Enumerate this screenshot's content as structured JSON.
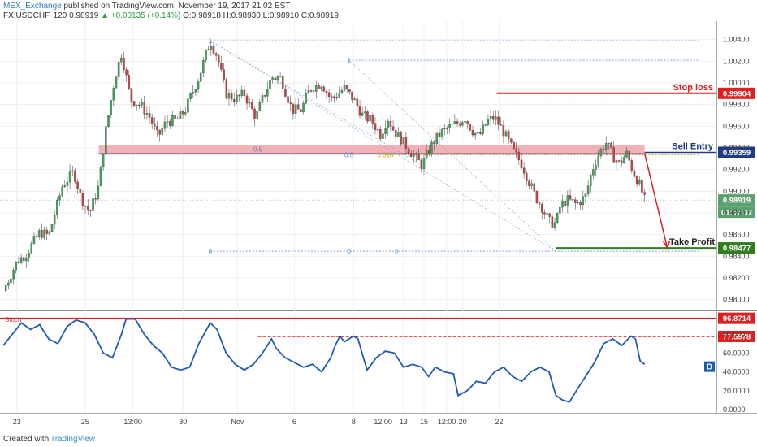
{
  "header": {
    "publisher": "MEX_Exchange",
    "published_text": "published on TradingView.com, November 19, 2017 21:02 EST",
    "symbol": "FX:USDCHF, 120",
    "price": "0.98919",
    "change": "+0.00135 (+0.14%)",
    "ohlc": "O:0.98918 H:0.98930 L:0.98910 C:0.98919"
  },
  "footer": {
    "created_with": "Created with",
    "brand": "TradingView"
  },
  "chart_data": {
    "type": "candlestick",
    "symbol": "FX:USDCHF",
    "timeframe": "120",
    "y_range": [
      0.9796,
      1.0051
    ],
    "y_ticks": [
      "1.00400",
      "1.00200",
      "1.00000",
      "0.99800",
      "0.99600",
      "0.99400",
      "0.99200",
      "0.99000",
      "0.98800",
      "0.98600",
      "0.98400",
      "0.98200",
      "0.98000"
    ],
    "x_ticks": [
      "23",
      "25",
      "13:00",
      "30",
      "Nov",
      "6",
      "8",
      "12:00",
      "13",
      "15",
      "12:00",
      "20",
      "22"
    ],
    "x_tick_pos": [
      0.03,
      0.18,
      0.285,
      0.395,
      0.515,
      0.64,
      0.77,
      0.835,
      0.88,
      0.925,
      0.975,
      1.01,
      1.09
    ],
    "price_path": [
      [
        0.0,
        0.9808
      ],
      [
        0.03,
        0.9835
      ],
      [
        0.05,
        0.9842
      ],
      [
        0.08,
        0.9862
      ],
      [
        0.1,
        0.9859
      ],
      [
        0.13,
        0.9905
      ],
      [
        0.155,
        0.9918
      ],
      [
        0.17,
        0.9895
      ],
      [
        0.19,
        0.988
      ],
      [
        0.21,
        0.9905
      ],
      [
        0.225,
        0.9955
      ],
      [
        0.245,
        1.0004
      ],
      [
        0.26,
        1.0028
      ],
      [
        0.28,
        0.9985
      ],
      [
        0.3,
        0.998
      ],
      [
        0.32,
        0.997
      ],
      [
        0.34,
        0.995
      ],
      [
        0.36,
        0.9965
      ],
      [
        0.38,
        0.9965
      ],
      [
        0.4,
        0.9975
      ],
      [
        0.43,
        1.0005
      ],
      [
        0.455,
        1.0039
      ],
      [
        0.47,
        1.0025
      ],
      [
        0.49,
        0.999
      ],
      [
        0.51,
        0.9985
      ],
      [
        0.53,
        0.999
      ],
      [
        0.555,
        0.9968
      ],
      [
        0.57,
        0.9985
      ],
      [
        0.59,
        1.0005
      ],
      [
        0.61,
        1.0005
      ],
      [
        0.635,
        0.9975
      ],
      [
        0.655,
        0.9975
      ],
      [
        0.675,
        0.9995
      ],
      [
        0.7,
        1.0
      ],
      [
        0.72,
        0.9985
      ],
      [
        0.75,
        0.9995
      ],
      [
        0.77,
        0.9985
      ],
      [
        0.79,
        0.997
      ],
      [
        0.81,
        0.9965
      ],
      [
        0.83,
        0.9952
      ],
      [
        0.845,
        0.9968
      ],
      [
        0.86,
        0.9955
      ],
      [
        0.875,
        0.9948
      ],
      [
        0.9,
        0.9934
      ],
      [
        0.92,
        0.9924
      ],
      [
        0.945,
        0.9945
      ],
      [
        0.965,
        0.9955
      ],
      [
        0.985,
        0.996
      ],
      [
        1.0,
        0.9963
      ],
      [
        1.015,
        0.9968
      ],
      [
        1.03,
        0.9957
      ],
      [
        1.045,
        0.995
      ],
      [
        1.065,
        0.9965
      ],
      [
        1.08,
        0.9968
      ],
      [
        1.1,
        0.9955
      ],
      [
        1.12,
        0.9938
      ],
      [
        1.14,
        0.9925
      ],
      [
        1.155,
        0.991
      ],
      [
        1.17,
        0.9895
      ],
      [
        1.185,
        0.9885
      ],
      [
        1.2,
        0.9872
      ],
      [
        1.215,
        0.987
      ],
      [
        1.225,
        0.9887
      ],
      [
        1.24,
        0.9892
      ],
      [
        1.26,
        0.9888
      ],
      [
        1.28,
        0.9895
      ],
      [
        1.295,
        0.992
      ],
      [
        1.31,
        0.9935
      ],
      [
        1.325,
        0.9945
      ],
      [
        1.34,
        0.9933
      ],
      [
        1.355,
        0.9925
      ],
      [
        1.37,
        0.9935
      ],
      [
        1.385,
        0.9918
      ],
      [
        1.4,
        0.9905
      ],
      [
        1.41,
        0.9892
      ]
    ],
    "resistance_zone": {
      "top": 0.99425,
      "bottom": 0.99345,
      "label": "0.5"
    },
    "fib_labels": [
      {
        "text": "1",
        "price": 1.0039,
        "pos": 0.455
      },
      {
        "text": "1",
        "price": 1.0021,
        "pos": 0.76
      },
      {
        "text": "0.5",
        "price": 0.99335,
        "pos": 0.76
      },
      {
        "text": "0.618",
        "price": 0.99335,
        "pos": 0.84
      },
      {
        "text": "0",
        "price": 0.98447,
        "pos": 0.455
      },
      {
        "text": "0",
        "price": 0.98447,
        "pos": 0.76
      },
      {
        "text": "0",
        "price": 0.98447,
        "pos": 0.865
      }
    ],
    "levels": [
      {
        "name": "Stop loss",
        "price": 0.99904,
        "color": "#e02020"
      },
      {
        "name": "Sell Entry",
        "price": 0.99359,
        "color": "#1f3a86"
      },
      {
        "name": "Take Profit",
        "price": 0.98477,
        "color": "#2e7d1f"
      }
    ],
    "current_price": "0.98919",
    "countdown": "01:57:32",
    "oscillator": {
      "name": "Stoch",
      "y_range": [
        0,
        100
      ],
      "y_ticks": [
        "80.0000",
        "60.0000",
        "40.0000",
        "20.0000",
        "0.0000"
      ],
      "levels": [
        {
          "value": 96.8714,
          "label": "96.8714",
          "color": "#e02020",
          "style": "solid"
        },
        {
          "value": 77.5978,
          "label": "77.5978",
          "color": "#e02020",
          "style": "dashed"
        }
      ],
      "line_color": "#1e5bb8",
      "badge": "D",
      "values": [
        [
          0.0,
          68
        ],
        [
          0.02,
          80
        ],
        [
          0.04,
          92
        ],
        [
          0.06,
          85
        ],
        [
          0.08,
          90
        ],
        [
          0.1,
          75
        ],
        [
          0.12,
          70
        ],
        [
          0.14,
          88
        ],
        [
          0.16,
          95
        ],
        [
          0.18,
          92
        ],
        [
          0.2,
          80
        ],
        [
          0.22,
          60
        ],
        [
          0.24,
          55
        ],
        [
          0.26,
          80
        ],
        [
          0.27,
          96
        ],
        [
          0.29,
          96
        ],
        [
          0.31,
          80
        ],
        [
          0.33,
          68
        ],
        [
          0.35,
          60
        ],
        [
          0.37,
          45
        ],
        [
          0.39,
          42
        ],
        [
          0.41,
          45
        ],
        [
          0.43,
          70
        ],
        [
          0.455,
          92
        ],
        [
          0.47,
          85
        ],
        [
          0.49,
          60
        ],
        [
          0.51,
          48
        ],
        [
          0.53,
          42
        ],
        [
          0.55,
          48
        ],
        [
          0.57,
          60
        ],
        [
          0.59,
          75
        ],
        [
          0.6,
          65
        ],
        [
          0.62,
          55
        ],
        [
          0.64,
          50
        ],
        [
          0.66,
          45
        ],
        [
          0.68,
          48
        ],
        [
          0.7,
          40
        ],
        [
          0.72,
          55
        ],
        [
          0.73,
          68
        ],
        [
          0.74,
          78
        ],
        [
          0.75,
          72
        ],
        [
          0.77,
          78
        ],
        [
          0.78,
          75
        ],
        [
          0.79,
          58
        ],
        [
          0.8,
          42
        ],
        [
          0.82,
          55
        ],
        [
          0.84,
          62
        ],
        [
          0.86,
          60
        ],
        [
          0.88,
          45
        ],
        [
          0.9,
          48
        ],
        [
          0.92,
          45
        ],
        [
          0.935,
          35
        ],
        [
          0.95,
          45
        ],
        [
          0.97,
          40
        ],
        [
          0.99,
          38
        ],
        [
          1.0,
          15
        ],
        [
          1.02,
          20
        ],
        [
          1.04,
          30
        ],
        [
          1.06,
          28
        ],
        [
          1.08,
          40
        ],
        [
          1.1,
          45
        ],
        [
          1.12,
          35
        ],
        [
          1.14,
          30
        ],
        [
          1.16,
          40
        ],
        [
          1.18,
          45
        ],
        [
          1.2,
          40
        ],
        [
          1.215,
          15
        ],
        [
          1.23,
          10
        ],
        [
          1.245,
          8
        ],
        [
          1.26,
          20
        ],
        [
          1.28,
          35
        ],
        [
          1.3,
          50
        ],
        [
          1.32,
          70
        ],
        [
          1.34,
          75
        ],
        [
          1.36,
          68
        ],
        [
          1.38,
          78
        ],
        [
          1.39,
          75
        ],
        [
          1.4,
          52
        ],
        [
          1.41,
          48
        ]
      ]
    }
  }
}
